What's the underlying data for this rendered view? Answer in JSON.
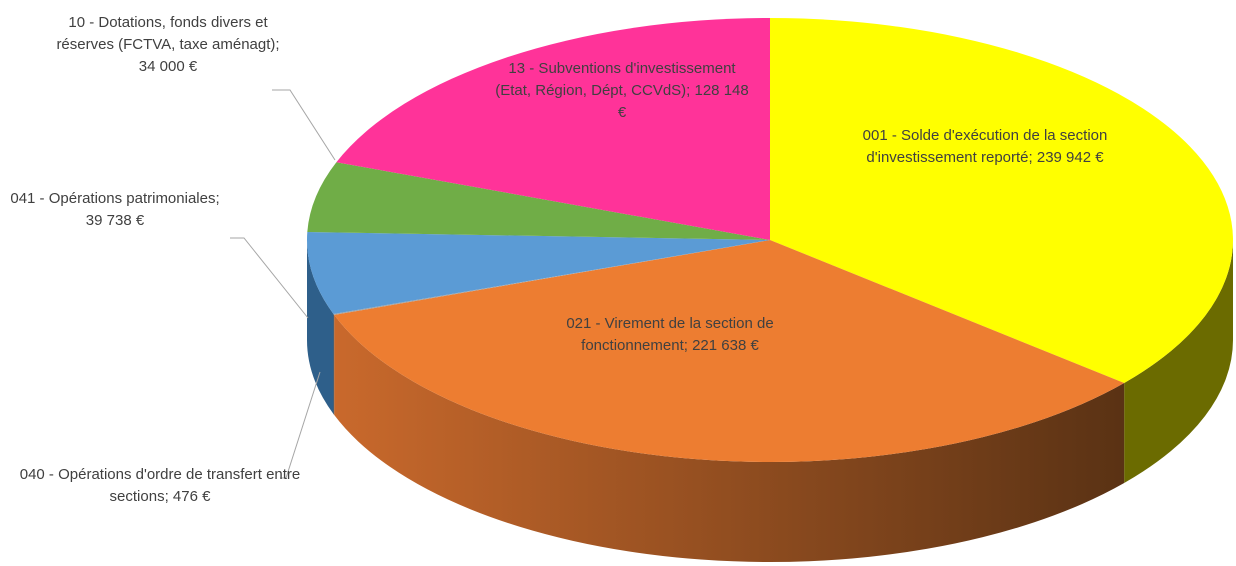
{
  "chart_data": {
    "type": "pie3d",
    "values": [
      239942,
      221638,
      476,
      39738,
      34000,
      128148
    ],
    "value_labels": [
      "001 - Solde d'exécution de la section d'investissement reporté; 239 942 €",
      "021 - Virement de la section de fonctionnement; 221 638 €",
      "040 - Opérations d'ordre de transfert entre sections; 476 €",
      "041 - Opérations patrimoniales; 39 738 €",
      "10 - Dotations, fonds divers et réserves (FCTVA, taxe aménagt); 34 000 €",
      "13 - Subventions d'investissement (Etat, Région, Dépt, CCVdS); 128 148 €"
    ],
    "colors": [
      "#ffff00",
      "#ed7d31",
      "#a5a5a5",
      "#5b9bd5",
      "#70ad47",
      "#ff3399"
    ]
  }
}
